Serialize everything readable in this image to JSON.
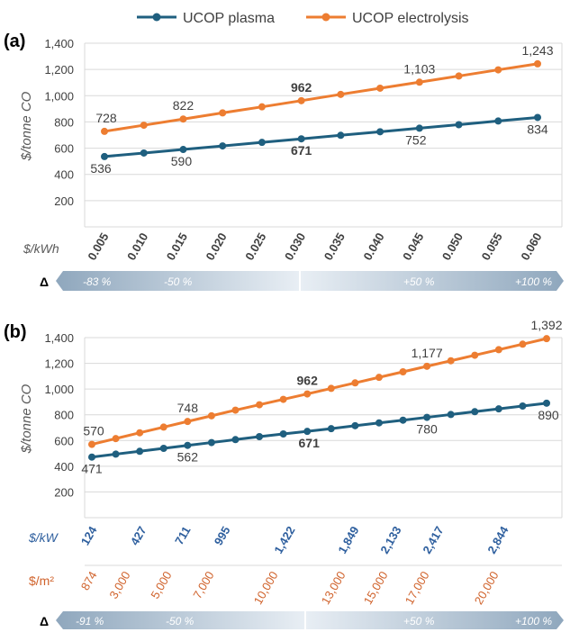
{
  "legend": {
    "items": [
      {
        "label": "UCOP plasma",
        "color": "#1f5f7f"
      },
      {
        "label": "UCOP electrolysis",
        "color": "#ed7d31"
      }
    ],
    "placement": "top-center"
  },
  "colors": {
    "plasma": "#1f5f7f",
    "electrolysis": "#ed7d31",
    "axis_text": "#404040",
    "grid": "#d9d9d9",
    "kw_axis": "#2e5f9e",
    "m2_axis": "#d0622b",
    "band_dark": "#8fa7bd",
    "band_light": "#e8eef4"
  },
  "chart_data": [
    {
      "panel_label": "(a)",
      "type": "line",
      "ylabel": "$/tonne CO",
      "ylim": [
        0,
        1400
      ],
      "yticks": [
        "200",
        "400",
        "600",
        "800",
        "1,000",
        "1,200",
        "1,400"
      ],
      "grid": true,
      "x_axis_title": "$/kWh",
      "x": [
        "0.005",
        "0.010",
        "0.015",
        "0.020",
        "0.025",
        "0.030",
        "0.035",
        "0.040",
        "0.045",
        "0.050",
        "0.055",
        "0.060"
      ],
      "series": [
        {
          "name": "UCOP plasma",
          "values": [
            536,
            563,
            590,
            617,
            644,
            671,
            698,
            725,
            752,
            779,
            807,
            834
          ],
          "labels": [
            {
              "index": 0,
              "text": "536"
            },
            {
              "index": 2,
              "text": "590"
            },
            {
              "index": 5,
              "text": "671",
              "bold": true
            },
            {
              "index": 8,
              "text": "752"
            },
            {
              "index": 11,
              "text": "834"
            }
          ]
        },
        {
          "name": "UCOP electrolysis",
          "values": [
            728,
            775,
            822,
            869,
            915,
            962,
            1010,
            1057,
            1103,
            1150,
            1197,
            1243
          ],
          "labels": [
            {
              "index": 0,
              "text": "728"
            },
            {
              "index": 2,
              "text": "822"
            },
            {
              "index": 5,
              "text": "962",
              "bold": true
            },
            {
              "index": 8,
              "text": "1,103"
            },
            {
              "index": 11,
              "text": "1,243"
            }
          ]
        }
      ],
      "delta_band": {
        "symbol": "Δ",
        "labels": [
          "-83 %",
          "-50 %",
          "+50 %",
          "+100 %"
        ]
      }
    },
    {
      "panel_label": "(b)",
      "type": "line",
      "ylabel": "$/tonne CO",
      "ylim": [
        0,
        1400
      ],
      "yticks": [
        "200",
        "400",
        "600",
        "800",
        "1,000",
        "1,200",
        "1,400"
      ],
      "grid": true,
      "x_axis_kw_title": "$/kW",
      "x_axis_kw": [
        "124",
        "427",
        "711",
        "995",
        "1,422",
        "1,849",
        "2,133",
        "2,417",
        "2,844"
      ],
      "x_axis_m2_title": "$/m²",
      "x_axis_m2": [
        "874",
        "3,000",
        "5,000",
        "7,000",
        "10,000",
        "13,000",
        "15,000",
        "17,000",
        "20,000"
      ],
      "series": [
        {
          "name": "UCOP plasma",
          "values": [
            471,
            494,
            516,
            539,
            562,
            584,
            607,
            630,
            651,
            671,
            692,
            715,
            737,
            758,
            780,
            802,
            824,
            846,
            868,
            890
          ],
          "labels": [
            {
              "index": 0,
              "text": "471"
            },
            {
              "index": 4,
              "text": "562"
            },
            {
              "index": 9,
              "text": "671",
              "bold": true
            },
            {
              "index": 14,
              "text": "780"
            },
            {
              "index": 19,
              "text": "890"
            }
          ]
        },
        {
          "name": "UCOP electrolysis",
          "values": [
            570,
            615,
            660,
            704,
            748,
            792,
            836,
            878,
            920,
            962,
            1005,
            1048,
            1091,
            1134,
            1177,
            1220,
            1263,
            1306,
            1349,
            1392
          ],
          "labels": [
            {
              "index": 0,
              "text": "570"
            },
            {
              "index": 4,
              "text": "748"
            },
            {
              "index": 9,
              "text": "962",
              "bold": true
            },
            {
              "index": 14,
              "text": "1,177"
            },
            {
              "index": 19,
              "text": "1,392"
            }
          ]
        }
      ],
      "delta_band": {
        "symbol": "Δ",
        "labels": [
          "-91 %",
          "-50 %",
          "+50 %",
          "+100 %"
        ]
      }
    }
  ]
}
